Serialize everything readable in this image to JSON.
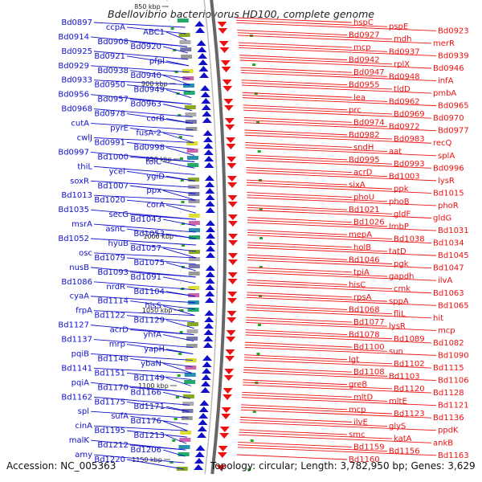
{
  "title": "Bdellovibrio bacteriovorus HD100, complete genome",
  "footer": {
    "accession": "Accession: NC_005363",
    "topology": "Topology: circular; Length: 3,782,950 bp; Genes: 3,629"
  },
  "colors": {
    "reverse_strand": "#1010cc",
    "forward_strand": "#ee1111",
    "backbone": "#666666",
    "scale_text": "#222222"
  },
  "scale_ticks": [
    "850 kbp",
    "900 kbp",
    "950 kbp",
    "1000 kbp",
    "1050 kbp",
    "1100 kbp",
    "1150 kbp"
  ],
  "left_labels": [
    "Bd0897",
    "ccpA",
    "ABC1",
    "Bd0914",
    "Bd0908",
    "Bd0920",
    "Bd0925",
    "Bd0921",
    "pfpI",
    "Bd0929",
    "Bd0938",
    "Bd0940",
    "Bd0933",
    "Bd0950",
    "Bd0949",
    "Bd0956",
    "Bd0957",
    "Bd0963",
    "Bd0968",
    "Bd0978",
    "corB",
    "cutA",
    "pyrE",
    "fusA-2",
    "cwlJ",
    "Bd0991",
    "Bd0998",
    "Bd0997",
    "Bd1000",
    "tolC",
    "thiL",
    "ycel",
    "ygiD",
    "soxR",
    "Bd1007",
    "ppx",
    "Bd1013",
    "Bd1020",
    "corA",
    "Bd1035",
    "secG",
    "Bd1043",
    "msrA",
    "asnC",
    "Bd1053",
    "Bd1052",
    "hyuB",
    "Bd1057",
    "osc",
    "Bd1079",
    "Bd1075",
    "nusB",
    "Bd1093",
    "Bd1091",
    "Bd1086",
    "nrdR",
    "Bd1104",
    "cyaA",
    "Bd1114",
    "hisS",
    "frpA",
    "Bd1122",
    "Bd1129",
    "Bd1127",
    "acrD",
    "yhfA",
    "Bd1137",
    "mrp",
    "yapH",
    "pqiB",
    "Bd1148",
    "ybaN",
    "Bd1141",
    "Bd1151",
    "Bd1149",
    "pqiA",
    "Bd1170",
    "Bd1166",
    "Bd1162",
    "Bd1175",
    "Bd1171",
    "spl",
    "sufA",
    "Bd1176",
    "cinA",
    "Bd1195",
    "Bd1213",
    "malK",
    "Bd1212",
    "Bd1206",
    "amy",
    "Bd1220"
  ],
  "right_labels": [
    "hspC",
    "pspE",
    "Bd0923",
    "Bd0927",
    "mdh",
    "merR",
    "mcp",
    "Bd0937",
    "Bd0939",
    "Bd0942",
    "rplX",
    "Bd0946",
    "Bd0947",
    "Bd0948",
    "infA",
    "Bd0955",
    "tldD",
    "pmbA",
    "lea",
    "Bd0962",
    "Bd0965",
    "prc",
    "Bd0969",
    "Bd0970",
    "Bd0974",
    "Bd0972",
    "Bd0977",
    "Bd0982",
    "Bd0983",
    "recQ",
    "sndH",
    "aat",
    "splA",
    "Bd0995",
    "Bd0993",
    "Bd0996",
    "acrD",
    "Bd1003",
    "lysR",
    "sixA",
    "ppk",
    "Bd1015",
    "phoU",
    "phoB",
    "phoR",
    "Bd1021",
    "gldF",
    "gldG",
    "Bd1026",
    "lmbP",
    "Bd1031",
    "mepA",
    "Bd1038",
    "Bd1034",
    "holB",
    "tatD",
    "Bd1045",
    "Bd1046",
    "pgk",
    "Bd1047",
    "tpiA",
    "gapdh",
    "ilvA",
    "hisC",
    "cmk",
    "Bd1063",
    "rpsA",
    "sppA",
    "Bd1065",
    "Bd1068",
    "fliL",
    "hit",
    "Bd1077",
    "lysR",
    "mcp",
    "Bd1078",
    "Bd1089",
    "Bd1082",
    "Bd1100",
    "sun",
    "Bd1090",
    "lgt",
    "Bd1102",
    "Bd1115",
    "Bd1108",
    "Bd1103",
    "Bd1106",
    "greB",
    "Bd1120",
    "Bd1128",
    "mltD",
    "mltE",
    "Bd1121",
    "mcp",
    "Bd1123",
    "Bd1136",
    "ilvE",
    "glyS",
    "ppdK",
    "smc",
    "katA",
    "ankB",
    "Bd1159",
    "Bd1156",
    "Bd1163",
    "Bd1160"
  ]
}
